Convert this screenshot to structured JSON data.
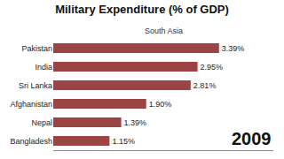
{
  "chart_data": {
    "type": "bar",
    "orientation": "horizontal",
    "title": "Military Expenditure (% of GDP)",
    "subtitle": "South Asia",
    "annotation": "2009",
    "categories": [
      "Pakistan",
      "India",
      "Sri Lanka",
      "Afghanistan",
      "Nepal",
      "Bangladesh"
    ],
    "values": [
      3.39,
      2.95,
      2.81,
      1.9,
      1.39,
      1.15
    ],
    "value_labels": [
      "3.39%",
      "2.95%",
      "2.81%",
      "1.90%",
      "1.39%",
      "1.15%"
    ],
    "data_labels": true,
    "color": "#9B4444",
    "xlim": [
      0,
      4.5
    ],
    "tick_labels": "y",
    "grid": false
  }
}
